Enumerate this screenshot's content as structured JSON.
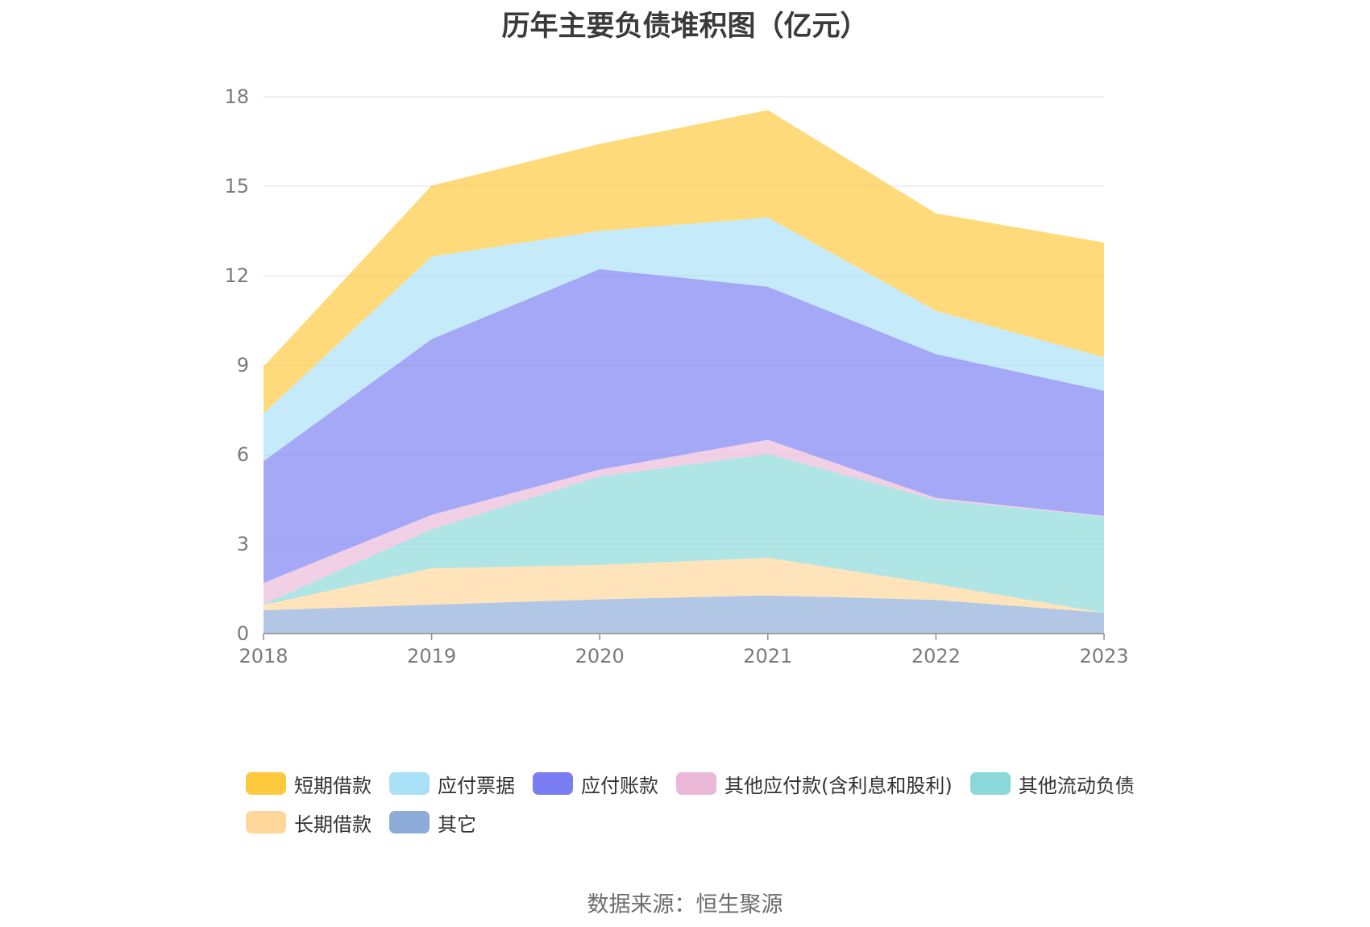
{
  "chart_data": {
    "type": "area",
    "stacked": true,
    "title": "历年主要负债堆积图（亿元）",
    "x": [
      "2018",
      "2019",
      "2020",
      "2021",
      "2022",
      "2023"
    ],
    "ylim": [
      0,
      18
    ],
    "yticks": [
      "0",
      "3",
      "6",
      "9",
      "12",
      "15",
      "18"
    ],
    "grid": true,
    "legend_position": "bottom",
    "series": [
      {
        "name": "其它",
        "color": "#8eacd9",
        "values": [
          0.78,
          0.97,
          1.15,
          1.28,
          1.13,
          0.7
        ]
      },
      {
        "name": "长期借款",
        "color": "#ffd79b",
        "values": [
          0.18,
          1.22,
          1.15,
          1.26,
          0.53,
          0.0
        ]
      },
      {
        "name": "其他流动负债",
        "color": "#8ad8d8",
        "values": [
          0.02,
          1.31,
          2.97,
          3.48,
          2.82,
          3.23
        ]
      },
      {
        "name": "其他应付款(含利息和股利)",
        "color": "#ebb8d8",
        "values": [
          0.72,
          0.48,
          0.23,
          0.48,
          0.07,
          0.02
        ]
      },
      {
        "name": "应付账款",
        "color": "#7b7ef3",
        "values": [
          4.08,
          5.89,
          6.72,
          5.13,
          4.82,
          4.19
        ]
      },
      {
        "name": "应付票据",
        "color": "#aae0f8",
        "values": [
          1.6,
          2.77,
          1.28,
          2.32,
          1.45,
          1.12
        ]
      },
      {
        "name": "短期借款",
        "color": "#ffc93d",
        "values": [
          1.57,
          2.38,
          2.92,
          3.6,
          3.27,
          3.85
        ]
      }
    ]
  },
  "legend_order": [
    {
      "name": "短期借款",
      "color": "#ffc93d"
    },
    {
      "name": "应付票据",
      "color": "#aae0f8"
    },
    {
      "name": "应付账款",
      "color": "#7b7ef3"
    },
    {
      "name": "其他应付款(含利息和股利)",
      "color": "#ebb8d8"
    },
    {
      "name": "其他流动负债",
      "color": "#8ad8d8"
    },
    {
      "name": "长期借款",
      "color": "#ffd79b"
    },
    {
      "name": "其它",
      "color": "#8eacd9"
    }
  ],
  "source_note": "数据来源：恒生聚源"
}
